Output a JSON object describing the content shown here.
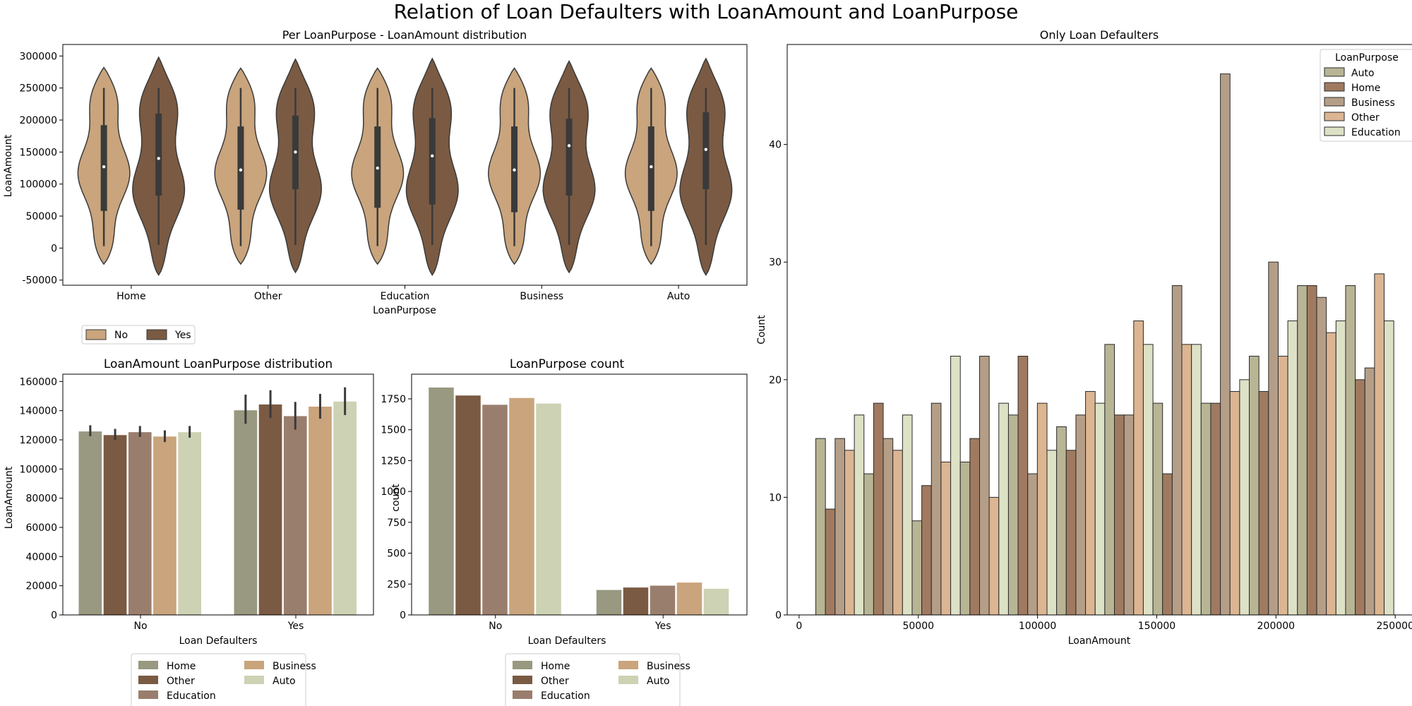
{
  "figure": {
    "title": "Relation of Loan Defaulters with LoanAmount and LoanPurpose"
  },
  "chart_data": [
    {
      "id": "violin",
      "type": "violin",
      "title": "Per LoanPurpose - LoanAmount distribution",
      "xlabel": "LoanPurpose",
      "ylabel": "LoanAmount",
      "categories": [
        "Home",
        "Other",
        "Education",
        "Business",
        "Auto"
      ],
      "yticks": [
        -50000,
        0,
        50000,
        100000,
        150000,
        200000,
        250000,
        300000
      ],
      "ylim": [
        -58000,
        318000
      ],
      "hue": [
        {
          "name": "No",
          "color": "#C9A47C"
        },
        {
          "name": "Yes",
          "color": "#7A5A42"
        }
      ],
      "legend": {
        "placement": "below-left",
        "entries": [
          "No",
          "Yes"
        ]
      },
      "stats": [
        {
          "category": "Home",
          "hue": "No",
          "median": 127000,
          "q1": 58000,
          "q3": 192000,
          "min": 3000,
          "max": 250000,
          "kde_min": -25000,
          "kde_max": 282000
        },
        {
          "category": "Home",
          "hue": "Yes",
          "median": 140000,
          "q1": 82000,
          "q3": 210000,
          "min": 5000,
          "max": 250000,
          "kde_min": -42000,
          "kde_max": 298000
        },
        {
          "category": "Other",
          "hue": "No",
          "median": 122000,
          "q1": 60000,
          "q3": 190000,
          "min": 3000,
          "max": 250000,
          "kde_min": -25000,
          "kde_max": 281000
        },
        {
          "category": "Other",
          "hue": "Yes",
          "median": 150000,
          "q1": 92000,
          "q3": 207000,
          "min": 5000,
          "max": 250000,
          "kde_min": -38000,
          "kde_max": 295000
        },
        {
          "category": "Education",
          "hue": "No",
          "median": 125000,
          "q1": 63000,
          "q3": 190000,
          "min": 3000,
          "max": 250000,
          "kde_min": -25000,
          "kde_max": 281000
        },
        {
          "category": "Education",
          "hue": "Yes",
          "median": 144000,
          "q1": 68000,
          "q3": 203000,
          "min": 5000,
          "max": 250000,
          "kde_min": -42000,
          "kde_max": 296000
        },
        {
          "category": "Business",
          "hue": "No",
          "median": 122000,
          "q1": 56000,
          "q3": 190000,
          "min": 3000,
          "max": 250000,
          "kde_min": -25000,
          "kde_max": 281000
        },
        {
          "category": "Business",
          "hue": "Yes",
          "median": 160000,
          "q1": 82000,
          "q3": 202000,
          "min": 5000,
          "max": 250000,
          "kde_min": -38000,
          "kde_max": 292000
        },
        {
          "category": "Auto",
          "hue": "No",
          "median": 127000,
          "q1": 58000,
          "q3": 190000,
          "min": 3000,
          "max": 250000,
          "kde_min": -25000,
          "kde_max": 281000
        },
        {
          "category": "Auto",
          "hue": "Yes",
          "median": 154000,
          "q1": 92000,
          "q3": 212000,
          "min": 5000,
          "max": 250000,
          "kde_min": -42000,
          "kde_max": 296000
        }
      ]
    },
    {
      "id": "meanbar",
      "type": "bar",
      "title": "LoanAmount LoanPurpose distribution",
      "xlabel": "Loan Defaulters",
      "ylabel": "LoanAmount",
      "categories": [
        "No",
        "Yes"
      ],
      "ylim": [
        0,
        165000
      ],
      "yticks": [
        0,
        20000,
        40000,
        60000,
        80000,
        100000,
        120000,
        140000,
        160000
      ],
      "series": [
        {
          "name": "Home",
          "color": "#999880",
          "values": [
            126000,
            140500
          ],
          "err": [
            [
              122500,
              130000
            ],
            [
              131000,
              151000
            ]
          ]
        },
        {
          "name": "Other",
          "color": "#7A5A42",
          "values": [
            123500,
            144500
          ],
          "err": [
            [
              120000,
              127500
            ],
            [
              135000,
              154000
            ]
          ]
        },
        {
          "name": "Education",
          "color": "#9A7E6D",
          "values": [
            125500,
            136500
          ],
          "err": [
            [
              122000,
              129500
            ],
            [
              127000,
              146000
            ]
          ]
        },
        {
          "name": "Business",
          "color": "#C9A47C",
          "values": [
            122500,
            143000
          ],
          "err": [
            [
              118500,
              126500
            ],
            [
              134500,
              151500
            ]
          ]
        },
        {
          "name": "Auto",
          "color": "#CDD2B4",
          "values": [
            125500,
            146500
          ],
          "err": [
            [
              121500,
              129500
            ],
            [
              137000,
              156000
            ]
          ]
        }
      ],
      "legend": {
        "placement": "below-center",
        "ncol": 2,
        "entries": [
          "Home",
          "Other",
          "Education",
          "Business",
          "Auto"
        ]
      }
    },
    {
      "id": "countbar",
      "type": "bar",
      "title": "LoanPurpose count",
      "xlabel": "Loan Defaulters",
      "ylabel": "count",
      "categories": [
        "No",
        "Yes"
      ],
      "ylim": [
        0,
        1950
      ],
      "yticks": [
        0,
        250,
        500,
        750,
        1000,
        1250,
        1500,
        1750
      ],
      "series": [
        {
          "name": "Home",
          "color": "#999880",
          "values": [
            1845,
            205
          ]
        },
        {
          "name": "Other",
          "color": "#7A5A42",
          "values": [
            1780,
            225
          ]
        },
        {
          "name": "Education",
          "color": "#9A7E6D",
          "values": [
            1705,
            240
          ]
        },
        {
          "name": "Business",
          "color": "#C9A47C",
          "values": [
            1760,
            265
          ]
        },
        {
          "name": "Auto",
          "color": "#CDD2B4",
          "values": [
            1715,
            215
          ]
        }
      ],
      "legend": {
        "placement": "below-center",
        "ncol": 2,
        "entries": [
          "Home",
          "Other",
          "Education",
          "Business",
          "Auto"
        ]
      }
    },
    {
      "id": "hist",
      "type": "bar",
      "subtype": "histogram",
      "title": "Only Loan Defaulters",
      "xlabel": "LoanAmount",
      "ylabel": "Count",
      "xlim": [
        -5000,
        260000
      ],
      "ylim": [
        0,
        48.5
      ],
      "xticks": [
        0,
        50000,
        100000,
        150000,
        200000,
        250000
      ],
      "yticks": [
        0,
        10,
        20,
        30,
        40
      ],
      "bin_edges": [
        7000,
        27200,
        47400,
        67600,
        87800,
        108000,
        128200,
        148400,
        168600,
        188800,
        209000,
        229200,
        249400
      ],
      "series": [
        {
          "name": "Auto",
          "color": "#B8B595",
          "values": [
            15,
            12,
            8,
            13,
            17,
            16,
            23,
            18,
            18,
            22,
            28,
            28
          ]
        },
        {
          "name": "Home",
          "color": "#A07A60",
          "values": [
            9,
            18,
            11,
            15,
            22,
            14,
            17,
            12,
            18,
            19,
            28,
            20
          ]
        },
        {
          "name": "Business",
          "color": "#B59E88",
          "values": [
            15,
            15,
            18,
            22,
            12,
            17,
            17,
            28,
            46,
            30,
            27,
            21
          ]
        },
        {
          "name": "Other",
          "color": "#DCB592",
          "values": [
            14,
            14,
            13,
            10,
            18,
            19,
            25,
            23,
            19,
            22,
            24,
            29
          ]
        },
        {
          "name": "Education",
          "color": "#DDE1C6",
          "values": [
            17,
            17,
            22,
            18,
            14,
            18,
            23,
            23,
            20,
            25,
            25,
            25
          ]
        }
      ],
      "legend": {
        "placement": "upper-right",
        "title": "LoanPurpose",
        "entries": [
          "Auto",
          "Home",
          "Business",
          "Other",
          "Education"
        ]
      }
    }
  ]
}
